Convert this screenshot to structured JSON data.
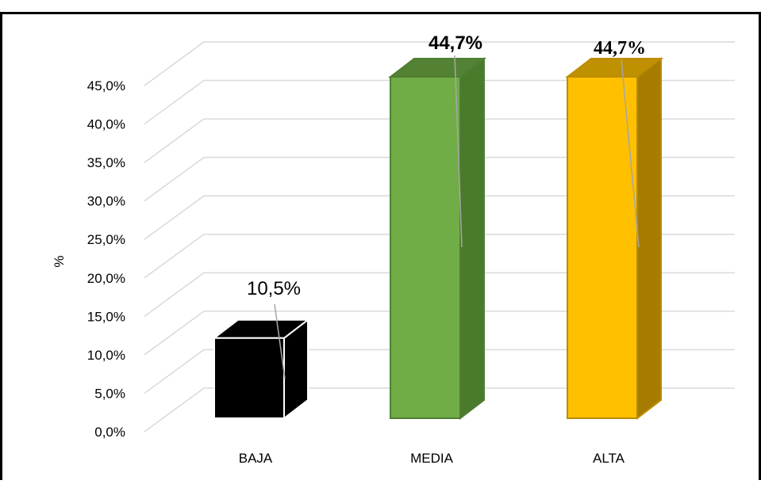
{
  "chart_data": {
    "type": "bar",
    "title": "",
    "xlabel": "",
    "ylabel": "%",
    "ylim": [
      0,
      45
    ],
    "y_ticks": [
      "0,0%",
      "5,0%",
      "10,0%",
      "15,0%",
      "20,0%",
      "25,0%",
      "30,0%",
      "35,0%",
      "40,0%",
      "45,0%"
    ],
    "categories": [
      "BAJA",
      "MEDIA",
      "ALTA"
    ],
    "values": [
      10.5,
      44.7,
      44.7
    ],
    "data_labels": [
      "10,5%",
      "44,7%",
      "44,7%"
    ],
    "style": "3d-column",
    "grid": true,
    "legend": "none",
    "colors": {
      "BAJA": {
        "front": "#000000",
        "side": "#000000",
        "top": "#000000",
        "edge": "#ffffff"
      },
      "MEDIA": {
        "front": "#70AD47",
        "side": "#4A7A2C",
        "top": "#548235",
        "edge": "#507E32"
      },
      "ALTA": {
        "front": "#FFC000",
        "side": "#A67C00",
        "top": "#BF9000",
        "edge": "#BC8C00"
      },
      "grid": "#d9d9d9",
      "leader": "#a6a6a6",
      "frame": "#000000"
    }
  }
}
